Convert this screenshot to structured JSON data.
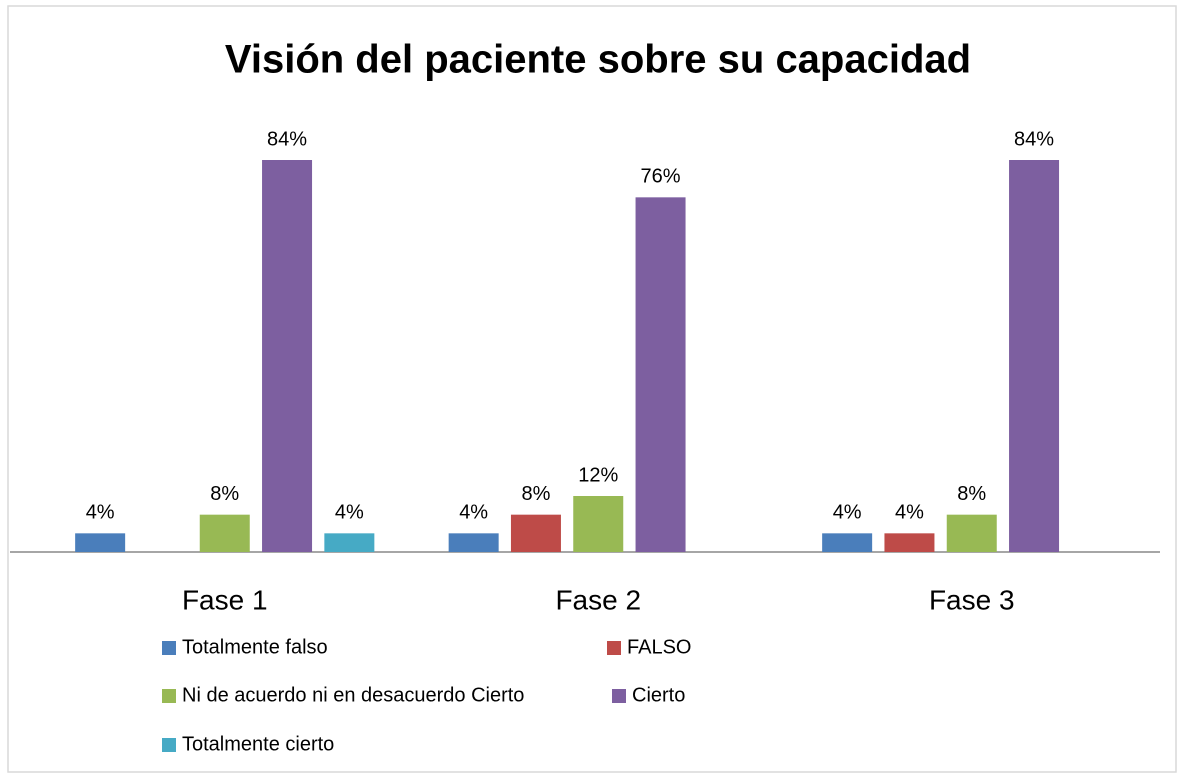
{
  "chart_data": {
    "type": "bar",
    "title": "Visión del paciente sobre su capacidad",
    "categories": [
      "Fase 1",
      "Fase 2",
      "Fase 3"
    ],
    "series": [
      {
        "name": "Totalmente falso",
        "color": "#4a7ebb",
        "values": [
          4,
          4,
          4
        ],
        "value_labels": [
          "4%",
          "4%",
          "4%"
        ]
      },
      {
        "name": "FALSO",
        "color": "#be4b48",
        "values": [
          null,
          8,
          4
        ],
        "value_labels": [
          null,
          "8%",
          "4%"
        ]
      },
      {
        "name": "Ni de acuerdo ni en desacuerdo Cierto",
        "color": "#98b954",
        "values": [
          8,
          12,
          8
        ],
        "value_labels": [
          "8%",
          "12%",
          "8%"
        ]
      },
      {
        "name": "Cierto",
        "color": "#7d5fa0",
        "values": [
          84,
          76,
          84
        ],
        "value_labels": [
          "84%",
          "76%",
          "84%"
        ]
      },
      {
        "name": "Totalmente cierto",
        "color": "#46aac5",
        "values": [
          4,
          null,
          null
        ],
        "value_labels": [
          "4%",
          null,
          null
        ]
      }
    ]
  }
}
